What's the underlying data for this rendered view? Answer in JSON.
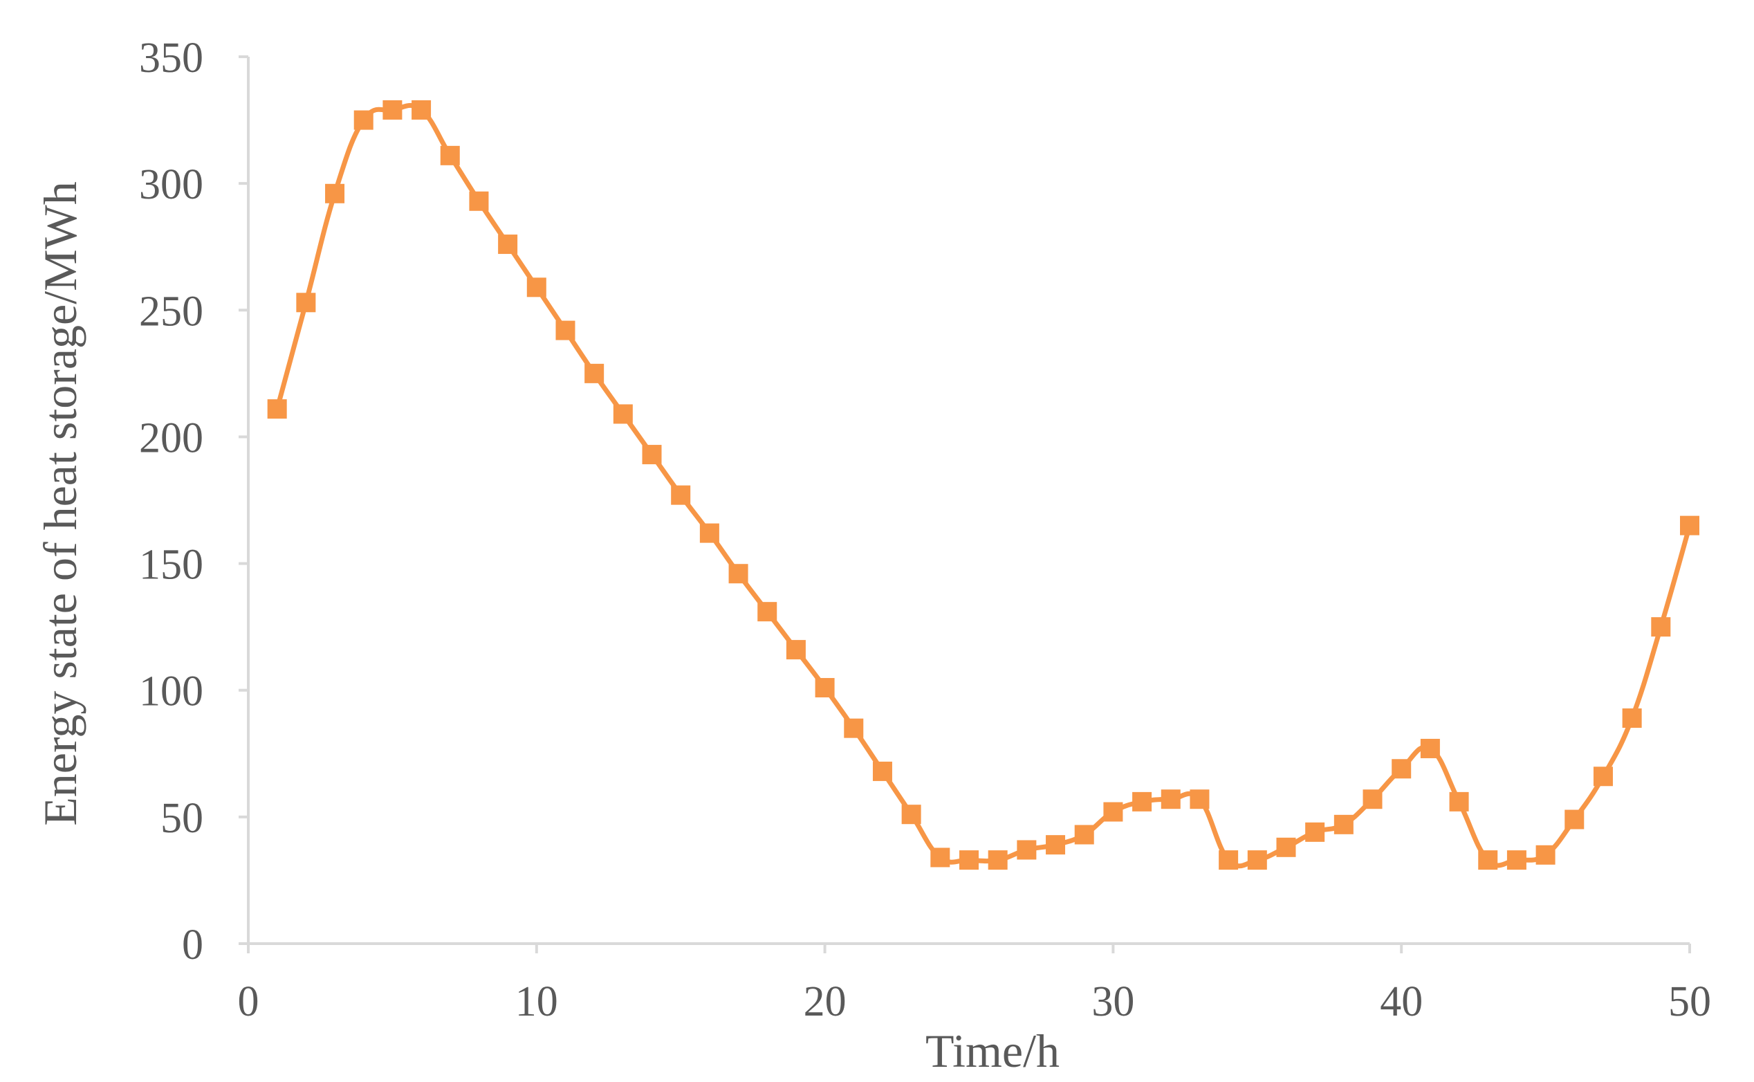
{
  "chart_data": {
    "type": "line",
    "title": "",
    "xlabel": "Time/h",
    "ylabel": "Energy state of heat storage/MWh",
    "xlim": [
      0,
      50
    ],
    "ylim": [
      0,
      350
    ],
    "x_ticks": [
      "0",
      "10",
      "20",
      "30",
      "40",
      "50"
    ],
    "y_ticks": [
      "0",
      "50",
      "100",
      "150",
      "200",
      "250",
      "300",
      "350"
    ],
    "grid": false,
    "legend": "none",
    "series": [
      {
        "color": "#f79646",
        "marker": "square",
        "x": [
          1,
          2,
          3,
          4,
          5,
          6,
          7,
          8,
          9,
          10,
          11,
          12,
          13,
          14,
          15,
          16,
          17,
          18,
          19,
          20,
          21,
          22,
          23,
          24,
          25,
          26,
          27,
          28,
          29,
          30,
          31,
          32,
          33,
          34,
          35,
          36,
          37,
          38,
          39,
          40,
          41,
          42,
          43,
          44,
          45,
          46,
          47,
          48,
          49,
          50
        ],
        "y": [
          211,
          253,
          296,
          325,
          329,
          329,
          311,
          293,
          276,
          259,
          242,
          225,
          209,
          193,
          177,
          162,
          146,
          131,
          116,
          101,
          85,
          68,
          51,
          34,
          33,
          33,
          37,
          39,
          43,
          52,
          56,
          57,
          57,
          33,
          33,
          38,
          44,
          47,
          57,
          69,
          77,
          56,
          33,
          33,
          35,
          49,
          66,
          89,
          125,
          165
        ]
      }
    ]
  }
}
